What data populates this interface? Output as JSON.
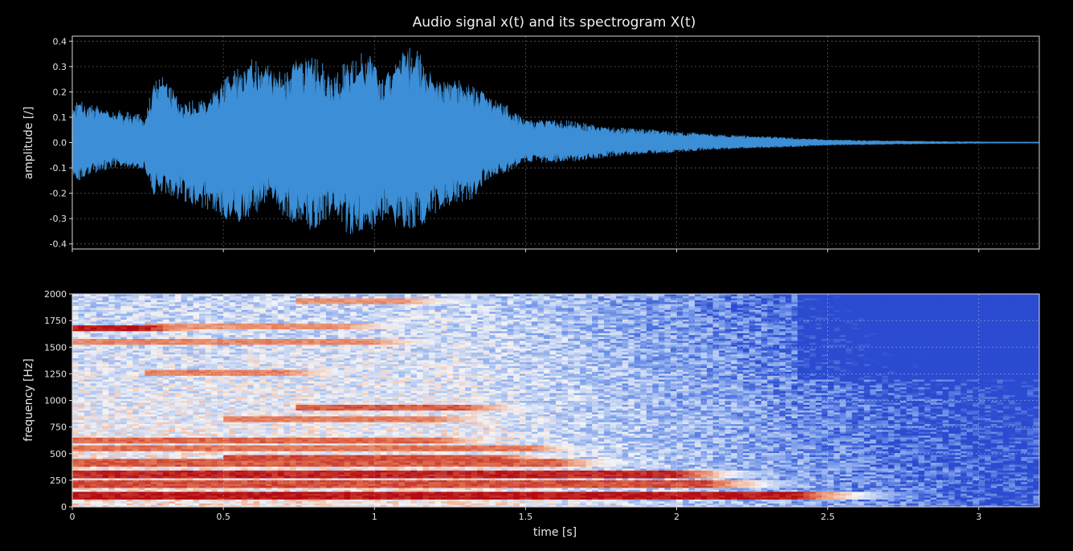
{
  "figure": {
    "title": "Audio signal x(t) and its spectrogram X(t)",
    "background": "#000000",
    "frame_color": "#d8d8d8",
    "grid_color": "#5a5a5a"
  },
  "chart_data": [
    {
      "type": "line",
      "title": "Audio signal x(t) and its spectrogram X(t)",
      "xlabel": "",
      "ylabel": "amplitude [/]",
      "xlim": [
        0,
        3.2
      ],
      "ylim": [
        -0.42,
        0.42
      ],
      "x_ticks": [
        0,
        0.5,
        1,
        1.5,
        2,
        2.5,
        3
      ],
      "y_ticks": [
        -0.4,
        -0.3,
        -0.2,
        -0.1,
        0.0,
        0.1,
        0.2,
        0.3,
        0.4
      ],
      "y_tick_labels": [
        "-0.4",
        "-0.3",
        "-0.2",
        "-0.1",
        "0.0",
        "0.1",
        "0.2",
        "0.3",
        "0.4"
      ],
      "grid": true,
      "color": "#3d8fd6",
      "envelope": {
        "t": [
          0.0,
          0.02,
          0.06,
          0.15,
          0.24,
          0.27,
          0.31,
          0.36,
          0.45,
          0.5,
          0.55,
          0.6,
          0.66,
          0.7,
          0.74,
          0.8,
          0.86,
          0.92,
          0.98,
          1.02,
          1.06,
          1.1,
          1.14,
          1.2,
          1.26,
          1.32,
          1.38,
          1.44,
          1.5,
          1.56,
          1.62,
          1.7,
          1.8,
          1.95,
          2.1,
          2.3,
          2.5,
          2.7,
          2.9,
          3.1,
          3.2
        ],
        "upper": [
          0.13,
          0.17,
          0.15,
          0.13,
          0.11,
          0.25,
          0.27,
          0.16,
          0.18,
          0.25,
          0.3,
          0.34,
          0.32,
          0.27,
          0.33,
          0.35,
          0.28,
          0.33,
          0.37,
          0.26,
          0.3,
          0.38,
          0.37,
          0.27,
          0.25,
          0.24,
          0.18,
          0.15,
          0.09,
          0.09,
          0.09,
          0.08,
          0.06,
          0.05,
          0.035,
          0.025,
          0.012,
          0.008,
          0.005,
          0.003,
          0.003
        ],
        "lower": [
          -0.12,
          -0.16,
          -0.13,
          -0.1,
          -0.11,
          -0.21,
          -0.2,
          -0.23,
          -0.27,
          -0.3,
          -0.32,
          -0.29,
          -0.22,
          -0.3,
          -0.33,
          -0.36,
          -0.3,
          -0.37,
          -0.36,
          -0.32,
          -0.34,
          -0.37,
          -0.35,
          -0.28,
          -0.24,
          -0.23,
          -0.14,
          -0.12,
          -0.08,
          -0.08,
          -0.08,
          -0.07,
          -0.055,
          -0.045,
          -0.03,
          -0.022,
          -0.012,
          -0.008,
          -0.005,
          -0.003,
          -0.003
        ]
      }
    },
    {
      "type": "heatmap",
      "xlabel": "time [s]",
      "ylabel": "frequency [Hz]",
      "xlim": [
        0,
        3.2
      ],
      "ylim": [
        0,
        2000
      ],
      "x_ticks": [
        0,
        0.5,
        1,
        1.5,
        2,
        2.5,
        3
      ],
      "x_tick_labels": [
        "0",
        "0.5",
        "1",
        "1.5",
        "2",
        "2.5",
        "3"
      ],
      "y_ticks": [
        0,
        250,
        500,
        750,
        1000,
        1250,
        1500,
        1750,
        2000
      ],
      "grid": true,
      "colormap": "coolwarm",
      "colormap_stops": [
        "#2b4bd0",
        "#6f93e8",
        "#b8ccf2",
        "#f4f4f6",
        "#f2b89d",
        "#e0704f",
        "#b40b14"
      ],
      "energy_bands_hz": [
        {
          "f": 110,
          "start": 0.0,
          "end": 2.4,
          "strength": 0.95
        },
        {
          "f": 220,
          "start": 0.0,
          "end": 2.1,
          "strength": 0.75
        },
        {
          "f": 310,
          "start": 0.0,
          "end": 2.0,
          "strength": 0.9
        },
        {
          "f": 420,
          "start": 0.0,
          "end": 1.6,
          "strength": 0.7
        },
        {
          "f": 470,
          "start": 0.5,
          "end": 1.4,
          "strength": 0.75
        },
        {
          "f": 560,
          "start": 0.0,
          "end": 1.5,
          "strength": 0.6
        },
        {
          "f": 630,
          "start": 0.0,
          "end": 1.2,
          "strength": 0.65
        },
        {
          "f": 830,
          "start": 0.5,
          "end": 1.2,
          "strength": 0.55
        },
        {
          "f": 940,
          "start": 0.75,
          "end": 1.3,
          "strength": 0.7
        },
        {
          "f": 1260,
          "start": 0.25,
          "end": 0.7,
          "strength": 0.55
        },
        {
          "f": 1550,
          "start": 0.0,
          "end": 1.0,
          "strength": 0.5
        },
        {
          "f": 1680,
          "start": 0.0,
          "end": 0.25,
          "strength": 0.95
        },
        {
          "f": 1700,
          "start": 0.25,
          "end": 0.9,
          "strength": 0.45
        },
        {
          "f": 1940,
          "start": 0.75,
          "end": 1.1,
          "strength": 0.45
        }
      ]
    }
  ]
}
